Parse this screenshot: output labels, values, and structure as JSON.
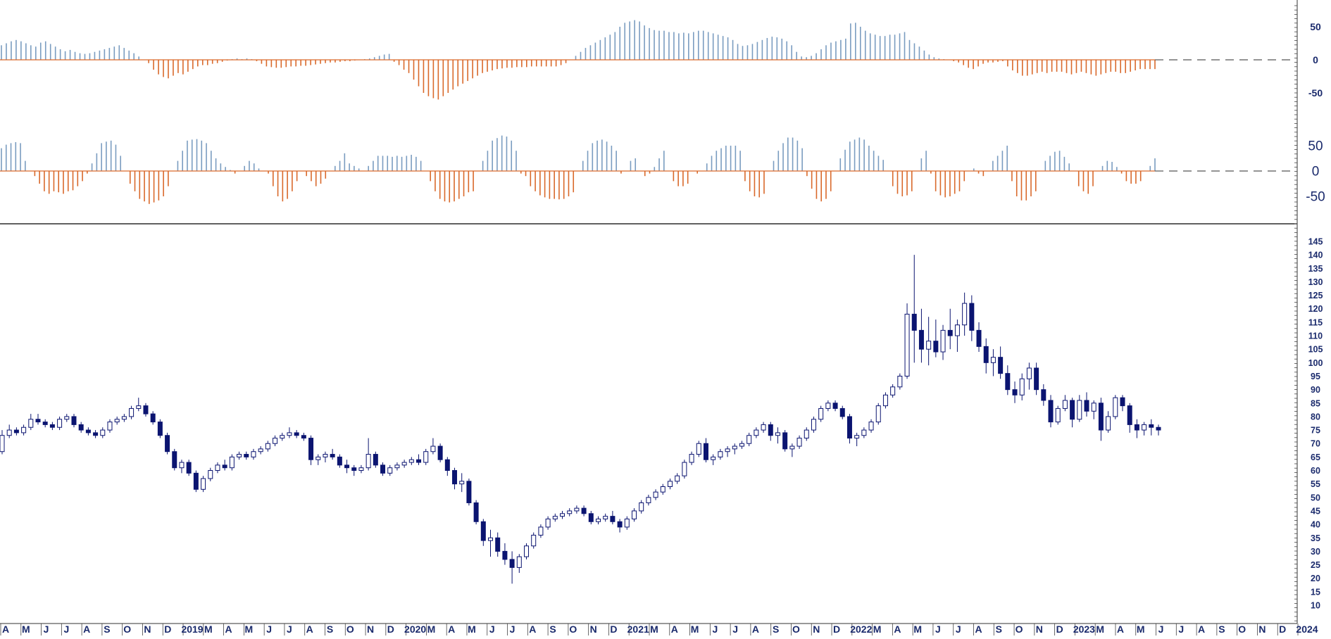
{
  "chart_data": {
    "type": "candlestick",
    "colors": {
      "positive_bar": "#7a9cc0",
      "negative_bar": "#d9692b",
      "candle": "#0b1470",
      "zero_line": "#555555",
      "frame": "#000000"
    },
    "panels": [
      {
        "name": "",
        "type": "bar",
        "ylim": [
          -70,
          70
        ],
        "yticks": [
          "50",
          "0",
          "-50"
        ]
      },
      {
        "name": "",
        "type": "bar",
        "ylim": [
          -80,
          85
        ],
        "yticks": [
          "50",
          "0",
          "-50"
        ]
      },
      {
        "name": "",
        "type": "candlestick",
        "ylim": [
          5,
          150
        ],
        "yticks": [
          "145",
          "140",
          "135",
          "130",
          "125",
          "120",
          "115",
          "110",
          "105",
          "100",
          "95",
          "90",
          "85",
          "80",
          "75",
          "70",
          "65",
          "60",
          "55",
          "50",
          "45",
          "40",
          "35",
          "30",
          "25",
          "20",
          "15",
          "10"
        ]
      }
    ],
    "x_tick_labels": [
      "A",
      "M",
      "J",
      "J",
      "A",
      "S",
      "O",
      "N",
      "D",
      "2019",
      "M",
      "A",
      "M",
      "J",
      "J",
      "A",
      "S",
      "O",
      "N",
      "D",
      "2020",
      "M",
      "A",
      "M",
      "J",
      "J",
      "A",
      "S",
      "O",
      "N",
      "D",
      "2021",
      "M",
      "A",
      "M",
      "J",
      "J",
      "A",
      "S",
      "O",
      "N",
      "D",
      "2022",
      "M",
      "A",
      "M",
      "J",
      "J",
      "A",
      "S",
      "O",
      "N",
      "D",
      "2023",
      "M",
      "A",
      "M",
      "J",
      "J",
      "A",
      "S",
      "O",
      "N",
      "D",
      "2024"
    ],
    "series": {
      "top": [
        22,
        25,
        28,
        30,
        28,
        25,
        22,
        20,
        26,
        28,
        24,
        20,
        16,
        13,
        15,
        12,
        10,
        9,
        10,
        12,
        14,
        16,
        18,
        20,
        22,
        18,
        14,
        10,
        5,
        0,
        -5,
        -15,
        -22,
        -26,
        -28,
        -24,
        -20,
        -22,
        -18,
        -14,
        -10,
        -8,
        -8,
        -6,
        -5,
        -3,
        -1,
        1,
        2,
        1,
        2,
        1,
        -2,
        -6,
        -10,
        -11,
        -12,
        -12,
        -11,
        -10,
        -10,
        -9,
        -9,
        -8,
        -7,
        -6,
        -5,
        -4,
        -4,
        -3,
        -2,
        -2,
        -1,
        0,
        1,
        2,
        4,
        6,
        8,
        9,
        -3,
        -8,
        -15,
        -20,
        -30,
        -40,
        -50,
        -55,
        -58,
        -60,
        -55,
        -50,
        -45,
        -40,
        -36,
        -32,
        -28,
        -24,
        -20,
        -18,
        -16,
        -14,
        -13,
        -12,
        -12,
        -11,
        -11,
        -11,
        -10,
        -10,
        -10,
        -10,
        -10,
        -10,
        -8,
        -5,
        0,
        6,
        12,
        18,
        22,
        26,
        30,
        34,
        38,
        42,
        50,
        56,
        58,
        60,
        58,
        52,
        48,
        45,
        44,
        44,
        42,
        42,
        40,
        41,
        40,
        42,
        44,
        44,
        42,
        40,
        38,
        36,
        34,
        30,
        24,
        21,
        22,
        24,
        27,
        30,
        33,
        35,
        34,
        32,
        28,
        22,
        12,
        5,
        4,
        6,
        10,
        16,
        22,
        26,
        28,
        30,
        32,
        55,
        56,
        50,
        44,
        40,
        38,
        36,
        36,
        38,
        38,
        40,
        42,
        30,
        25,
        20,
        14,
        8,
        4,
        2,
        1,
        0,
        -2,
        -4,
        -8,
        -12,
        -14,
        -10,
        -6,
        -4,
        -4,
        -3,
        -2,
        -10,
        -16,
        -20,
        -24,
        -24,
        -22,
        -20,
        -18,
        -20,
        -18,
        -18,
        -18,
        -20,
        -22,
        -20,
        -18,
        -20,
        -22,
        -24,
        -22,
        -20,
        -18,
        -18,
        -20,
        -20,
        -18,
        -16,
        -14,
        -14,
        -14,
        -14
      ],
      "middle": [
        45,
        52,
        55,
        57,
        55,
        20,
        0,
        -10,
        -25,
        -40,
        -45,
        -40,
        -42,
        -45,
        -40,
        -38,
        -30,
        -20,
        -5,
        15,
        35,
        55,
        58,
        60,
        52,
        30,
        0,
        -25,
        -40,
        -55,
        -60,
        -65,
        -62,
        -58,
        -50,
        -30,
        0,
        20,
        40,
        60,
        62,
        63,
        60,
        55,
        40,
        25,
        15,
        8,
        2,
        -5,
        0,
        10,
        20,
        15,
        5,
        0,
        -5,
        -30,
        -50,
        -60,
        -55,
        -40,
        -20,
        0,
        -10,
        -20,
        -30,
        -25,
        -15,
        0,
        10,
        20,
        35,
        15,
        10,
        5,
        0,
        10,
        20,
        30,
        30,
        30,
        28,
        30,
        28,
        30,
        32,
        28,
        20,
        0,
        -20,
        -40,
        -55,
        -60,
        -62,
        -60,
        -55,
        -50,
        -42,
        -40,
        0,
        20,
        40,
        60,
        65,
        70,
        68,
        60,
        40,
        -5,
        -10,
        -30,
        -40,
        -48,
        -52,
        -55,
        -55,
        -56,
        -55,
        -50,
        -42,
        0,
        20,
        40,
        55,
        60,
        62,
        58,
        50,
        40,
        -5,
        0,
        20,
        25,
        0,
        -10,
        -5,
        8,
        25,
        40,
        0,
        -20,
        -30,
        -30,
        -25,
        0,
        -5,
        0,
        15,
        30,
        40,
        45,
        50,
        50,
        50,
        40,
        -20,
        -40,
        -50,
        -52,
        -45,
        0,
        20,
        40,
        55,
        66,
        66,
        60,
        45,
        -10,
        -35,
        -55,
        -60,
        -55,
        -40,
        0,
        25,
        42,
        58,
        62,
        66,
        62,
        50,
        40,
        30,
        22,
        0,
        -30,
        -45,
        -50,
        -48,
        -40,
        0,
        25,
        40,
        -5,
        -40,
        -48,
        -52,
        -50,
        -45,
        -40,
        -20,
        0,
        5,
        -5,
        -10,
        0,
        20,
        30,
        40,
        50,
        -20,
        -50,
        -58,
        -58,
        -50,
        -40,
        0,
        20,
        30,
        38,
        40,
        28,
        15,
        0,
        -30,
        -40,
        -45,
        -30,
        0,
        10,
        20,
        18,
        8,
        -5,
        -20,
        -25,
        -25,
        -20,
        0,
        10,
        25
      ]
    },
    "candles": [
      [
        67,
        75,
        66,
        73
      ],
      [
        73,
        77,
        72,
        75
      ],
      [
        75,
        76,
        73,
        74
      ],
      [
        74,
        77,
        73,
        76
      ],
      [
        76,
        81,
        75,
        79
      ],
      [
        79,
        81,
        77,
        78
      ],
      [
        78,
        79,
        76,
        77
      ],
      [
        77,
        78,
        75,
        76
      ],
      [
        76,
        80,
        75,
        79
      ],
      [
        79,
        81,
        78,
        80
      ],
      [
        80,
        81,
        76,
        77
      ],
      [
        77,
        78,
        74,
        75
      ],
      [
        75,
        76,
        73,
        74
      ],
      [
        74,
        75,
        72,
        73
      ],
      [
        73,
        76,
        72,
        75
      ],
      [
        75,
        79,
        74,
        78
      ],
      [
        78,
        80,
        77,
        79
      ],
      [
        79,
        81,
        78,
        80
      ],
      [
        80,
        84,
        79,
        83
      ],
      [
        83,
        87,
        82,
        84
      ],
      [
        84,
        85,
        80,
        81
      ],
      [
        81,
        82,
        77,
        78
      ],
      [
        78,
        79,
        72,
        73
      ],
      [
        73,
        74,
        66,
        67
      ],
      [
        67,
        68,
        60,
        61
      ],
      [
        61,
        64,
        59,
        63
      ],
      [
        63,
        64,
        58,
        59
      ],
      [
        59,
        60,
        52,
        53
      ],
      [
        53,
        58,
        52,
        57
      ],
      [
        57,
        61,
        56,
        60
      ],
      [
        60,
        63,
        59,
        62
      ],
      [
        62,
        64,
        60,
        61
      ],
      [
        61,
        66,
        60,
        65
      ],
      [
        65,
        67,
        64,
        66
      ],
      [
        66,
        67,
        64,
        65
      ],
      [
        65,
        68,
        64,
        67
      ],
      [
        67,
        69,
        66,
        68
      ],
      [
        68,
        71,
        67,
        70
      ],
      [
        70,
        73,
        69,
        72
      ],
      [
        72,
        74,
        71,
        73
      ],
      [
        73,
        76,
        72,
        74
      ],
      [
        74,
        75,
        72,
        73
      ],
      [
        73,
        74,
        71,
        72
      ],
      [
        72,
        73,
        62,
        64
      ],
      [
        64,
        66,
        62,
        65
      ],
      [
        65,
        67,
        63,
        66
      ],
      [
        66,
        68,
        64,
        65
      ],
      [
        65,
        66,
        61,
        62
      ],
      [
        62,
        64,
        59,
        61
      ],
      [
        61,
        62,
        58,
        60
      ],
      [
        60,
        62,
        59,
        61
      ],
      [
        61,
        72,
        60,
        66
      ],
      [
        66,
        67,
        61,
        62
      ],
      [
        62,
        63,
        58,
        59
      ],
      [
        59,
        62,
        58,
        61
      ],
      [
        61,
        63,
        60,
        62
      ],
      [
        62,
        64,
        61,
        63
      ],
      [
        63,
        65,
        62,
        64
      ],
      [
        64,
        66,
        62,
        63
      ],
      [
        63,
        68,
        62,
        67
      ],
      [
        67,
        72,
        66,
        69
      ],
      [
        69,
        70,
        63,
        64
      ],
      [
        64,
        65,
        58,
        60
      ],
      [
        60,
        61,
        53,
        55
      ],
      [
        55,
        59,
        52,
        56
      ],
      [
        56,
        57,
        47,
        48
      ],
      [
        48,
        49,
        40,
        41
      ],
      [
        41,
        42,
        32,
        34
      ],
      [
        34,
        38,
        28,
        35
      ],
      [
        35,
        37,
        28,
        30
      ],
      [
        30,
        33,
        25,
        27
      ],
      [
        27,
        30,
        18,
        24
      ],
      [
        24,
        29,
        22,
        28
      ],
      [
        28,
        33,
        27,
        32
      ],
      [
        32,
        37,
        31,
        36
      ],
      [
        36,
        40,
        35,
        39
      ],
      [
        39,
        43,
        38,
        42
      ],
      [
        42,
        44,
        41,
        43
      ],
      [
        43,
        45,
        42,
        44
      ],
      [
        44,
        46,
        43,
        45
      ],
      [
        45,
        47,
        44,
        46
      ],
      [
        46,
        47,
        43,
        44
      ],
      [
        44,
        45,
        40,
        41
      ],
      [
        41,
        43,
        40,
        42
      ],
      [
        42,
        44,
        41,
        43
      ],
      [
        43,
        45,
        40,
        41
      ],
      [
        41,
        42,
        37,
        39
      ],
      [
        39,
        43,
        38,
        42
      ],
      [
        42,
        46,
        41,
        45
      ],
      [
        45,
        49,
        44,
        48
      ],
      [
        48,
        51,
        47,
        50
      ],
      [
        50,
        53,
        49,
        52
      ],
      [
        52,
        55,
        51,
        54
      ],
      [
        54,
        57,
        53,
        56
      ],
      [
        56,
        59,
        55,
        58
      ],
      [
        58,
        64,
        57,
        63
      ],
      [
        63,
        67,
        62,
        66
      ],
      [
        66,
        71,
        65,
        70
      ],
      [
        70,
        72,
        63,
        64
      ],
      [
        64,
        66,
        62,
        65
      ],
      [
        65,
        68,
        64,
        67
      ],
      [
        67,
        69,
        65,
        68
      ],
      [
        68,
        70,
        66,
        69
      ],
      [
        69,
        71,
        68,
        70
      ],
      [
        70,
        74,
        69,
        73
      ],
      [
        73,
        76,
        72,
        75
      ],
      [
        75,
        78,
        74,
        77
      ],
      [
        77,
        78,
        71,
        73
      ],
      [
        73,
        76,
        70,
        74
      ],
      [
        74,
        75,
        67,
        68
      ],
      [
        68,
        70,
        65,
        69
      ],
      [
        69,
        73,
        68,
        72
      ],
      [
        72,
        76,
        71,
        75
      ],
      [
        75,
        80,
        74,
        79
      ],
      [
        79,
        84,
        78,
        83
      ],
      [
        83,
        86,
        82,
        85
      ],
      [
        85,
        86,
        82,
        83
      ],
      [
        83,
        84,
        79,
        80
      ],
      [
        80,
        81,
        70,
        72
      ],
      [
        72,
        74,
        69,
        73
      ],
      [
        73,
        76,
        72,
        75
      ],
      [
        75,
        79,
        74,
        78
      ],
      [
        78,
        85,
        77,
        84
      ],
      [
        84,
        89,
        83,
        88
      ],
      [
        88,
        92,
        87,
        91
      ],
      [
        91,
        96,
        90,
        95
      ],
      [
        95,
        122,
        94,
        118
      ],
      [
        118,
        140,
        100,
        112
      ],
      [
        112,
        120,
        100,
        105
      ],
      [
        105,
        117,
        99,
        108
      ],
      [
        108,
        116,
        102,
        104
      ],
      [
        104,
        114,
        101,
        112
      ],
      [
        112,
        120,
        105,
        110
      ],
      [
        110,
        116,
        104,
        114
      ],
      [
        114,
        126,
        110,
        122
      ],
      [
        122,
        125,
        108,
        112
      ],
      [
        112,
        115,
        104,
        106
      ],
      [
        106,
        109,
        96,
        100
      ],
      [
        100,
        105,
        95,
        102
      ],
      [
        102,
        106,
        94,
        96
      ],
      [
        96,
        99,
        88,
        90
      ],
      [
        90,
        93,
        85,
        88
      ],
      [
        88,
        96,
        86,
        94
      ],
      [
        94,
        100,
        90,
        98
      ],
      [
        98,
        100,
        88,
        90
      ],
      [
        90,
        92,
        84,
        86
      ],
      [
        86,
        88,
        76,
        78
      ],
      [
        78,
        84,
        77,
        83
      ],
      [
        83,
        88,
        82,
        86
      ],
      [
        86,
        87,
        76,
        79
      ],
      [
        79,
        88,
        78,
        86
      ],
      [
        86,
        89,
        80,
        82
      ],
      [
        82,
        86,
        79,
        85
      ],
      [
        85,
        87,
        71,
        75
      ],
      [
        75,
        82,
        74,
        80
      ],
      [
        80,
        88,
        79,
        87
      ],
      [
        87,
        88,
        82,
        84
      ],
      [
        84,
        85,
        74,
        77
      ],
      [
        77,
        79,
        72,
        75
      ],
      [
        75,
        78,
        73,
        77
      ],
      [
        77,
        79,
        73,
        76
      ],
      [
        76,
        77,
        73,
        75
      ]
    ]
  }
}
